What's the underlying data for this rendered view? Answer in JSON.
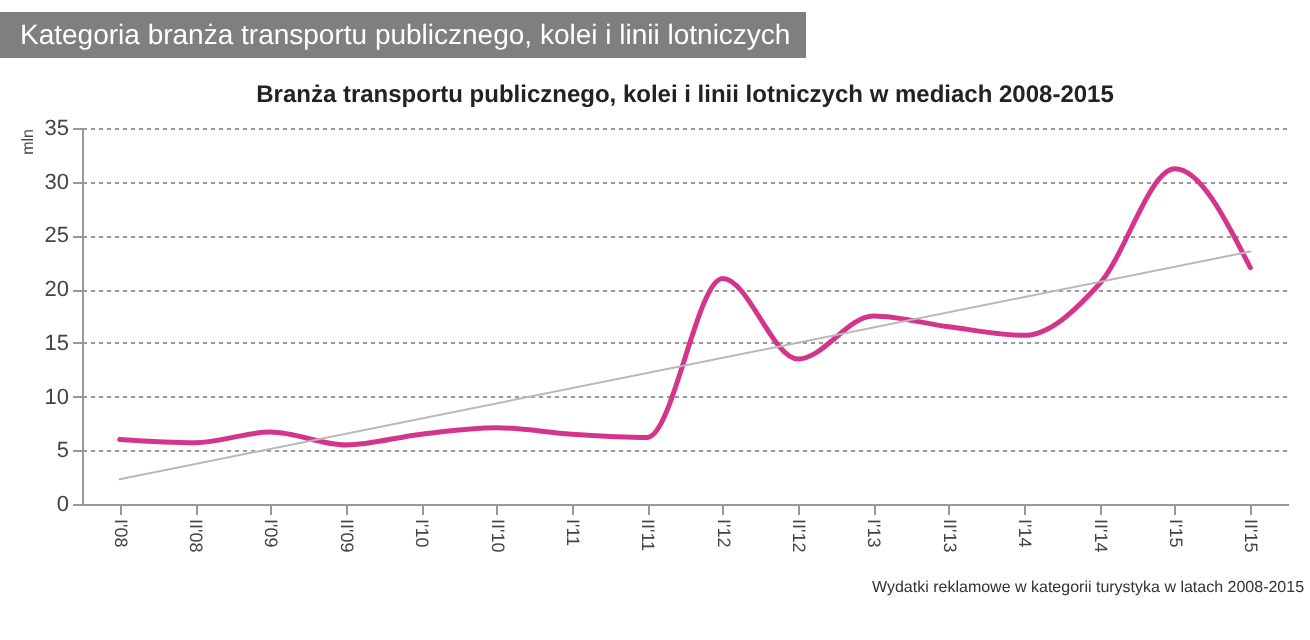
{
  "chart_data": {
    "type": "line",
    "title": "Kategoria branża transportu publicznego, kolei i linii lotniczych",
    "subtitle": "Branża transportu publicznego, kolei i linii lotniczych w mediach 2008-2015",
    "ylabel": "mln",
    "categories": [
      "I'08",
      "II'08",
      "I'09",
      "II'09",
      "I'10",
      "II'10",
      "I'11",
      "II'11",
      "I'12",
      "II'12",
      "I'13",
      "II'13",
      "I'14",
      "II'14",
      "I'15",
      "II'15"
    ],
    "series": [
      {
        "color": "#d4358c",
        "values": [
          6,
          5.7,
          6.7,
          5.5,
          6.5,
          7.1,
          6.5,
          6.2,
          21,
          13.5,
          17.5,
          16.5,
          15.7,
          20.5,
          31.2,
          22
        ]
      },
      {
        "type": "line",
        "color": "#b8b8b8",
        "x": [
          "I'08",
          "II'15"
        ],
        "values": [
          2.3,
          23.5
        ]
      }
    ],
    "ylim": [
      0,
      35
    ],
    "yticks": [
      0,
      5,
      10,
      15,
      20,
      25,
      30,
      35
    ],
    "grid": "y",
    "marker": "none",
    "line_style": "solid",
    "annotations": [
      "Wydatki reklamowe w kategorii turystyka w latach 2008-2015"
    ]
  }
}
